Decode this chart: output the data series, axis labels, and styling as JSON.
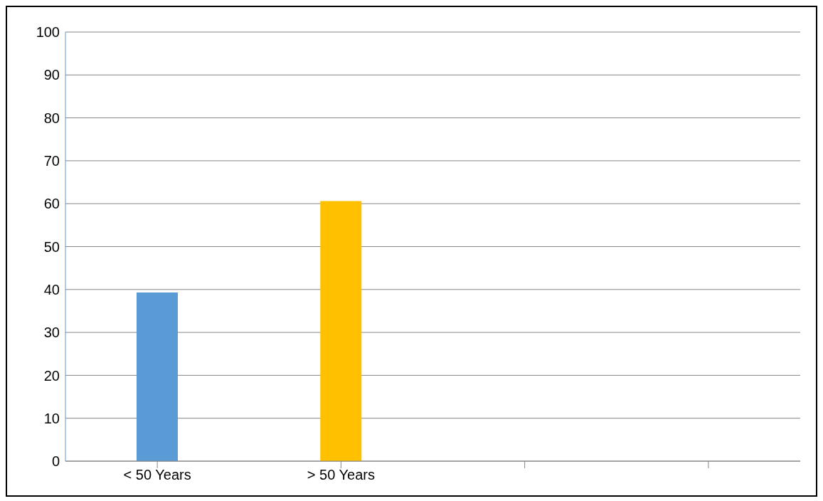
{
  "chart_data": {
    "type": "bar",
    "categories": [
      "< 50 Years",
      "> 50 Years",
      null,
      null
    ],
    "values": [
      39.3,
      60.6,
      null,
      null
    ],
    "colors": [
      "#5b9bd5",
      "#ffc000",
      null,
      null
    ],
    "ylim": [
      0,
      100
    ],
    "yticks": [
      0,
      10,
      20,
      30,
      40,
      50,
      60,
      70,
      80,
      90,
      100
    ],
    "grid": "y"
  }
}
